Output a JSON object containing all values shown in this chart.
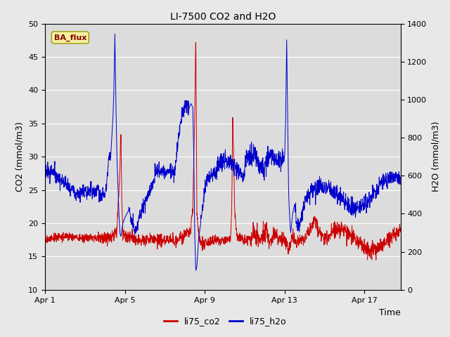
{
  "title": "LI-7500 CO2 and H2O",
  "xlabel": "Time",
  "ylabel_left": "CO2 (mmol/m3)",
  "ylabel_right": "H2O (mmol/m3)",
  "legend_label": "BA_flux",
  "series_labels": [
    "li75_co2",
    "li75_h2o"
  ],
  "co2_color": "#cc0000",
  "h2o_color": "#0000cc",
  "ylim_left": [
    10,
    50
  ],
  "ylim_right": [
    0,
    1400
  ],
  "fig_bg_color": "#e8e8e8",
  "plot_bg_color": "#dcdcdc",
  "title_fontsize": 10,
  "axis_fontsize": 9,
  "tick_fontsize": 8,
  "x_ticks": [
    1,
    5,
    9,
    13,
    17
  ],
  "x_tick_labels": [
    "Apr 1",
    "Apr 5",
    "Apr 9",
    "Apr 13",
    "Apr 17"
  ],
  "xlim": [
    1,
    18.8
  ]
}
